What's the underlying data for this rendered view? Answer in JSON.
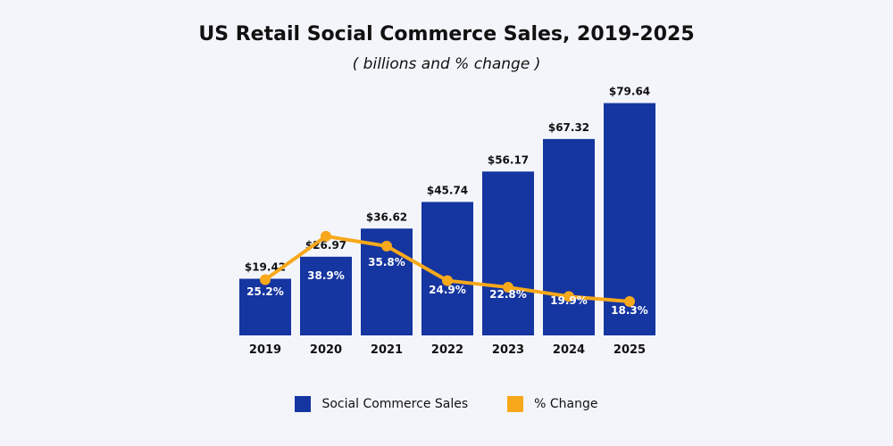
{
  "chart_data": {
    "type": "bar",
    "title": "US Retail Social Commerce Sales, 2019-2025",
    "subtitle": "( billions and % change )",
    "categories": [
      "2019",
      "2020",
      "2021",
      "2022",
      "2023",
      "2024",
      "2025"
    ],
    "series": [
      {
        "name": "Social Commerce Sales",
        "type": "bar",
        "values": [
          19.42,
          26.97,
          36.62,
          45.74,
          56.17,
          67.32,
          79.64
        ],
        "labels": [
          "$19.42",
          "$26.97",
          "$36.62",
          "$45.74",
          "$56.17",
          "$67.32",
          "$79.64"
        ]
      },
      {
        "name": "% Change",
        "type": "line",
        "values": [
          25.2,
          38.9,
          35.8,
          24.9,
          22.8,
          19.9,
          18.3
        ],
        "labels": [
          "25.2%",
          "38.9%",
          "35.8%",
          "24.9%",
          "22.8%",
          "19.9%",
          "18.3%"
        ]
      }
    ],
    "xlabel": "",
    "ylabel": "",
    "grid": false,
    "legend_position": "bottom"
  },
  "colors": {
    "bar": "#1535a0",
    "line": "#f7a81b",
    "background": "#f3f5fb",
    "text": "#111111"
  }
}
